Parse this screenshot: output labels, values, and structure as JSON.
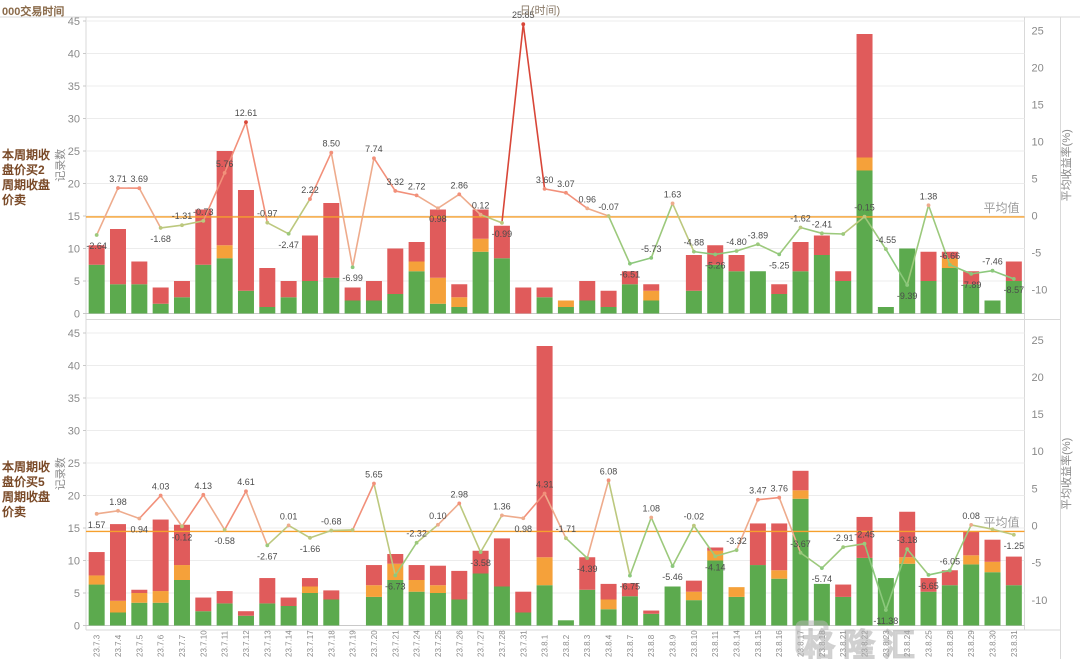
{
  "header": {
    "top_left": "000交易时间",
    "title": "日(时间)"
  },
  "watermark": {
    "text": "格隆汇"
  },
  "chart_data": {
    "type": "combo-stacked-bar-line",
    "categories": [
      "23.7.3",
      "23.7.4",
      "23.7.5",
      "23.7.6",
      "23.7.7",
      "23.7.10",
      "23.7.11",
      "23.7.12",
      "23.7.13",
      "23.7.14",
      "23.7.17",
      "23.7.18",
      "23.7.19",
      "23.7.20",
      "23.7.21",
      "23.7.24",
      "23.7.25",
      "23.7.26",
      "23.7.27",
      "23.7.28",
      "23.7.31",
      "23.8.1",
      "23.8.2",
      "23.8.3",
      "23.8.4",
      "23.8.7",
      "23.8.8",
      "23.8.9",
      "23.8.10",
      "23.8.11",
      "23.8.14",
      "23.8.15",
      "23.8.16",
      "23.8.17",
      "23.8.18",
      "23.8.21",
      "23.8.22",
      "23.8.23",
      "23.8.24",
      "23.8.25",
      "23.8.28",
      "23.8.29",
      "23.8.30",
      "23.8.31"
    ],
    "left_axis": {
      "title": "记录数",
      "ticks": [
        45,
        40,
        35,
        30,
        25,
        20,
        15,
        10,
        5,
        0
      ]
    },
    "right_axis": {
      "title": "平均收益率(%)",
      "ticks": [
        25,
        20,
        15,
        10,
        5,
        0,
        -5,
        -10
      ]
    },
    "colors": {
      "bar_green": "#5caa4e",
      "bar_orange": "#f5a13a",
      "bar_red": "#e05b5b",
      "avg_line": "#f6a02d",
      "line_positive": "#f2907a",
      "line_negative": "#8cc87c"
    },
    "panels": [
      {
        "row_label": "本周期收盘价买2周期收盘价卖",
        "row_label_lines": [
          "本周期收",
          "盘价买2",
          "周期收盘",
          "价卖"
        ],
        "avg_label": "平均值",
        "avg_value": -0.2,
        "bars": [
          [
            7.5,
            0,
            3
          ],
          [
            4.5,
            0,
            8.5
          ],
          [
            4.5,
            0,
            3.5
          ],
          [
            1.5,
            0,
            2.5
          ],
          [
            2.5,
            0,
            2.5
          ],
          [
            7.5,
            0,
            8.5
          ],
          [
            8.5,
            2,
            14.5
          ],
          [
            3.5,
            0,
            15.5
          ],
          [
            1,
            0,
            6
          ],
          [
            2.5,
            0,
            2.5
          ],
          [
            5,
            0,
            7
          ],
          [
            5.5,
            0,
            11.5
          ],
          [
            2,
            0,
            2
          ],
          [
            2,
            0,
            3
          ],
          [
            3,
            0,
            7
          ],
          [
            6.5,
            1.5,
            3
          ],
          [
            1.5,
            4,
            10.5
          ],
          [
            1,
            1.5,
            2
          ],
          [
            9.5,
            2,
            4.5
          ],
          [
            8.5,
            0,
            5
          ],
          [
            0,
            0,
            4
          ],
          [
            2.5,
            0,
            1.5
          ],
          [
            1,
            1,
            0
          ],
          [
            2,
            0,
            3
          ],
          [
            1,
            0,
            2.5
          ],
          [
            4.5,
            0,
            2
          ],
          [
            2,
            1.5,
            1
          ],
          [
            0,
            0,
            0
          ],
          [
            3.5,
            0,
            5.5
          ],
          [
            7.5,
            0,
            3
          ],
          [
            6.5,
            0,
            2.5
          ],
          [
            6.5,
            0,
            0
          ],
          [
            3,
            0,
            1.5
          ],
          [
            6.5,
            0,
            4.5
          ],
          [
            9,
            0,
            3
          ],
          [
            5,
            0,
            1.5
          ],
          [
            22,
            2,
            19
          ],
          [
            1,
            0,
            0
          ],
          [
            10,
            0,
            0
          ],
          [
            5,
            0,
            4.5
          ],
          [
            7,
            1.5,
            1
          ],
          [
            4.5,
            0,
            2
          ],
          [
            2,
            0,
            0
          ],
          [
            5,
            0,
            3
          ]
        ],
        "line": [
          {
            "v": -2.64,
            "label": "-2.64"
          },
          {
            "v": 3.71,
            "label": "3.71"
          },
          {
            "v": 3.69,
            "label": "3.69"
          },
          {
            "v": -1.68,
            "label": "-1.68"
          },
          {
            "v": -1.31,
            "label": "-1.31"
          },
          {
            "v": -0.73,
            "label": "-0.73"
          },
          {
            "v": 5.76,
            "label": "5.76"
          },
          {
            "v": 12.61,
            "label": "12.61"
          },
          {
            "v": -0.97,
            "label": "-0.97"
          },
          {
            "v": -2.47,
            "label": "-2.47"
          },
          {
            "v": 2.22,
            "label": "2.22"
          },
          {
            "v": 8.5,
            "label": "8.50"
          },
          {
            "v": -6.99,
            "label": "-6.99"
          },
          {
            "v": 7.74,
            "label": "7.74"
          },
          {
            "v": 3.32,
            "label": "3.32"
          },
          {
            "v": 2.72,
            "label": "2.72"
          },
          {
            "v": 0.98,
            "label": "0.98"
          },
          {
            "v": 2.86,
            "label": "2.86"
          },
          {
            "v": 0.12,
            "label": "0.12"
          },
          {
            "v": -0.99,
            "label": "-0.99"
          },
          {
            "v": 25.85,
            "label": "25.85"
          },
          {
            "v": 3.6,
            "label": "3.60"
          },
          {
            "v": 3.07,
            "label": "3.07"
          },
          {
            "v": 0.96,
            "label": "0.96"
          },
          {
            "v": -0.07,
            "label": "-0.07"
          },
          {
            "v": -6.51,
            "label": "-6.51"
          },
          {
            "v": -5.73,
            "label": "-5.73"
          },
          {
            "v": 1.63,
            "label": "1.63"
          },
          {
            "v": -4.88,
            "label": "-4.88"
          },
          {
            "v": -5.26,
            "label": "-5.26"
          },
          {
            "v": -4.8,
            "label": "-4.80"
          },
          {
            "v": -3.89,
            "label": "-3.89"
          },
          {
            "v": -5.25,
            "label": "-5.25"
          },
          {
            "v": -1.62,
            "label": "-1.62"
          },
          {
            "v": -2.41,
            "label": "-2.41"
          },
          {
            "v": -2.5,
            "label": null
          },
          {
            "v": -0.15,
            "label": "-0.15"
          },
          {
            "v": -4.55,
            "label": "-4.55"
          },
          {
            "v": -9.39,
            "label": "-9.39"
          },
          {
            "v": 1.38,
            "label": "1.38"
          },
          {
            "v": -6.66,
            "label": "-6.66"
          },
          {
            "v": -7.89,
            "label": "-7.89"
          },
          {
            "v": -7.46,
            "label": "-7.46"
          },
          {
            "v": -8.57,
            "label": "-8.57"
          }
        ]
      },
      {
        "row_label": "本周期收盘价买5周期收盘价卖",
        "row_label_lines": [
          "本周期收",
          "盘价买5",
          "周期收盘",
          "价卖"
        ],
        "avg_label": "平均值",
        "avg_value": -0.8,
        "bars": [
          [
            6.3,
            1.4,
            3.6
          ],
          [
            2,
            1.8,
            11.8
          ],
          [
            3.5,
            1.5,
            0.5
          ],
          [
            3.5,
            1.8,
            11
          ],
          [
            7,
            2.3,
            6.2
          ],
          [
            2.2,
            0,
            2.1
          ],
          [
            3.4,
            0,
            1.9
          ],
          [
            1.5,
            0,
            0.7
          ],
          [
            3.4,
            0,
            3.9
          ],
          [
            3,
            0,
            1.3
          ],
          [
            5,
            1,
            1.3
          ],
          [
            4,
            0,
            1.4
          ],
          [
            0,
            0,
            0
          ],
          [
            4.4,
            1.8,
            3.1
          ],
          [
            7,
            2.5,
            1.5
          ],
          [
            5.2,
            1.8,
            2.3
          ],
          [
            5,
            1.2,
            3
          ],
          [
            4,
            0,
            4.4
          ],
          [
            8,
            0,
            3.5
          ],
          [
            6,
            0,
            7.4
          ],
          [
            2,
            0,
            3.2
          ],
          [
            6.2,
            4.3,
            32.5
          ],
          [
            0.8,
            0,
            0
          ],
          [
            5.5,
            0,
            5
          ],
          [
            2.5,
            1.5,
            2.4
          ],
          [
            4.5,
            0,
            2
          ],
          [
            1.8,
            0,
            0.5
          ],
          [
            6,
            0,
            0
          ],
          [
            3.9,
            1.3,
            1.7
          ],
          [
            10,
            1.5,
            0.5
          ],
          [
            4.4,
            1.5,
            0
          ],
          [
            9.3,
            0,
            6.4
          ],
          [
            7.2,
            1.3,
            7.2
          ],
          [
            19.5,
            1.3,
            3
          ],
          [
            6.4,
            0,
            0
          ],
          [
            4.4,
            0,
            1.9
          ],
          [
            10.4,
            0,
            6.3
          ],
          [
            7.3,
            0,
            0
          ],
          [
            9.5,
            1,
            7
          ],
          [
            5.2,
            0,
            2.1
          ],
          [
            6.2,
            0,
            2.3
          ],
          [
            9.4,
            1.4,
            3.6
          ],
          [
            8.2,
            1.6,
            3.4
          ],
          [
            6.2,
            0,
            4.4
          ]
        ],
        "line": [
          {
            "v": 1.57,
            "label": "1.57"
          },
          {
            "v": 1.98,
            "label": "1.98"
          },
          {
            "v": 0.94,
            "label": "0.94"
          },
          {
            "v": 4.03,
            "label": "4.03"
          },
          {
            "v": -0.12,
            "label": "-0.12"
          },
          {
            "v": 4.13,
            "label": "4.13"
          },
          {
            "v": -0.58,
            "label": "-0.58"
          },
          {
            "v": 4.61,
            "label": "4.61"
          },
          {
            "v": -2.67,
            "label": "-2.67"
          },
          {
            "v": 0.01,
            "label": "0.01"
          },
          {
            "v": -1.66,
            "label": "-1.66"
          },
          {
            "v": -0.68,
            "label": "-0.68"
          },
          {
            "v": -0.6,
            "label": null
          },
          {
            "v": 5.65,
            "label": "5.65"
          },
          {
            "v": -6.73,
            "label": "-6.73"
          },
          {
            "v": -2.32,
            "label": "-2.32"
          },
          {
            "v": 0.1,
            "label": "0.10"
          },
          {
            "v": 2.98,
            "label": "2.98"
          },
          {
            "v": -3.58,
            "label": "-3.58"
          },
          {
            "v": 1.36,
            "label": "1.36"
          },
          {
            "v": 0.98,
            "label": "0.98"
          },
          {
            "v": 4.31,
            "label": "4.31"
          },
          {
            "v": -1.71,
            "label": "-1.71"
          },
          {
            "v": -4.39,
            "label": "-4.39"
          },
          {
            "v": 6.08,
            "label": "6.08"
          },
          {
            "v": -6.75,
            "label": "-6.75"
          },
          {
            "v": 1.08,
            "label": "1.08"
          },
          {
            "v": -5.46,
            "label": "-5.46"
          },
          {
            "v": -0.02,
            "label": "-0.02"
          },
          {
            "v": -4.14,
            "label": "-4.14"
          },
          {
            "v": -3.32,
            "label": "-3.32"
          },
          {
            "v": 3.47,
            "label": "3.47"
          },
          {
            "v": 3.76,
            "label": "3.76"
          },
          {
            "v": -3.67,
            "label": "-3.67"
          },
          {
            "v": -5.74,
            "label": "-5.74"
          },
          {
            "v": -2.91,
            "label": "-2.91"
          },
          {
            "v": -2.45,
            "label": "-2.45"
          },
          {
            "v": -11.38,
            "label": "-11.38"
          },
          {
            "v": -3.18,
            "label": "-3.18"
          },
          {
            "v": -6.65,
            "label": "-6.65"
          },
          {
            "v": -6.05,
            "label": "-6.05"
          },
          {
            "v": 0.08,
            "label": "0.08"
          },
          {
            "v": -0.5,
            "label": null
          },
          {
            "v": -1.25,
            "label": "-1.25"
          }
        ]
      }
    ]
  }
}
